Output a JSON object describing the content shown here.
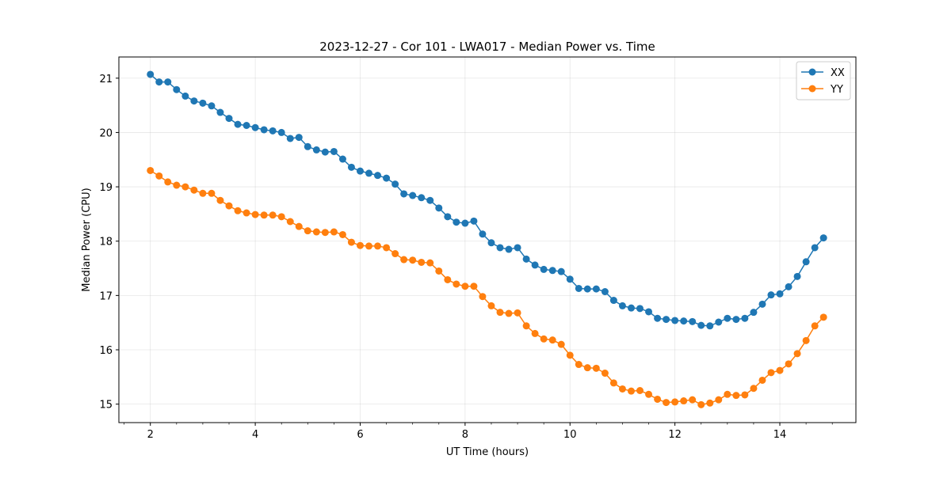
{
  "chart_data": {
    "type": "line",
    "title": "2023-12-27 - Cor 101 - LWA017 - Median Power vs. Time",
    "xlabel": "UT Time (hours)",
    "ylabel": "Median Power (CPU)",
    "xlim": [
      1.4,
      15.45
    ],
    "ylim": [
      14.66,
      21.39
    ],
    "xticks": [
      2,
      4,
      6,
      8,
      10,
      12,
      14
    ],
    "yticks": [
      15,
      16,
      17,
      18,
      19,
      20,
      21
    ],
    "grid": true,
    "legend_position": "top-right",
    "series": [
      {
        "name": "XX",
        "color": "#1f77b4",
        "marker": "circle",
        "x": [
          2.0,
          2.167,
          2.333,
          2.5,
          2.667,
          2.833,
          3.0,
          3.167,
          3.333,
          3.5,
          3.667,
          3.833,
          4.0,
          4.167,
          4.333,
          4.5,
          4.667,
          4.833,
          5.0,
          5.167,
          5.333,
          5.5,
          5.667,
          5.833,
          6.0,
          6.167,
          6.333,
          6.5,
          6.667,
          6.833,
          7.0,
          7.167,
          7.333,
          7.5,
          7.667,
          7.833,
          8.0,
          8.167,
          8.333,
          8.5,
          8.667,
          8.833,
          9.0,
          9.167,
          9.333,
          9.5,
          9.667,
          9.833,
          10.0,
          10.167,
          10.333,
          10.5,
          10.667,
          10.833,
          11.0,
          11.167,
          11.333,
          11.5,
          11.667,
          11.833,
          12.0,
          12.167,
          12.333,
          12.5,
          12.667,
          12.833,
          13.0,
          13.167,
          13.333,
          13.5,
          13.667,
          13.833,
          14.0,
          14.167,
          14.333,
          14.5,
          14.667,
          14.833
        ],
        "values": [
          21.07,
          20.93,
          20.93,
          20.79,
          20.67,
          20.58,
          20.54,
          20.49,
          20.37,
          20.26,
          20.15,
          20.13,
          20.09,
          20.05,
          20.03,
          20.0,
          19.89,
          19.91,
          19.74,
          19.68,
          19.64,
          19.65,
          19.51,
          19.36,
          19.29,
          19.25,
          19.21,
          19.16,
          19.05,
          18.87,
          18.84,
          18.8,
          18.75,
          18.61,
          18.45,
          18.35,
          18.33,
          18.37,
          18.13,
          17.97,
          17.88,
          17.85,
          17.88,
          17.67,
          17.56,
          17.48,
          17.46,
          17.44,
          17.3,
          17.13,
          17.12,
          17.12,
          17.07,
          16.91,
          16.81,
          16.77,
          16.76,
          16.7,
          16.58,
          16.56,
          16.54,
          16.53,
          16.52,
          16.45,
          16.44,
          16.51,
          16.58,
          16.56,
          16.58,
          16.69,
          16.84,
          17.01,
          17.03,
          17.16,
          17.35,
          17.62,
          17.88,
          18.06
        ]
      },
      {
        "name": "YY",
        "color": "#ff7f0e",
        "marker": "circle",
        "x": [
          2.0,
          2.167,
          2.333,
          2.5,
          2.667,
          2.833,
          3.0,
          3.167,
          3.333,
          3.5,
          3.667,
          3.833,
          4.0,
          4.167,
          4.333,
          4.5,
          4.667,
          4.833,
          5.0,
          5.167,
          5.333,
          5.5,
          5.667,
          5.833,
          6.0,
          6.167,
          6.333,
          6.5,
          6.667,
          6.833,
          7.0,
          7.167,
          7.333,
          7.5,
          7.667,
          7.833,
          8.0,
          8.167,
          8.333,
          8.5,
          8.667,
          8.833,
          9.0,
          9.167,
          9.333,
          9.5,
          9.667,
          9.833,
          10.0,
          10.167,
          10.333,
          10.5,
          10.667,
          10.833,
          11.0,
          11.167,
          11.333,
          11.5,
          11.667,
          11.833,
          12.0,
          12.167,
          12.333,
          12.5,
          12.667,
          12.833,
          13.0,
          13.167,
          13.333,
          13.5,
          13.667,
          13.833,
          14.0,
          14.167,
          14.333,
          14.5,
          14.667,
          14.833
        ],
        "values": [
          19.3,
          19.2,
          19.09,
          19.03,
          19.0,
          18.94,
          18.88,
          18.88,
          18.75,
          18.65,
          18.56,
          18.52,
          18.49,
          18.48,
          18.48,
          18.45,
          18.36,
          18.27,
          18.19,
          18.17,
          18.16,
          18.17,
          18.12,
          17.98,
          17.92,
          17.91,
          17.91,
          17.88,
          17.77,
          17.66,
          17.65,
          17.61,
          17.6,
          17.45,
          17.29,
          17.21,
          17.17,
          17.17,
          16.98,
          16.81,
          16.69,
          16.67,
          16.68,
          16.44,
          16.3,
          16.2,
          16.18,
          16.1,
          15.9,
          15.73,
          15.67,
          15.66,
          15.57,
          15.39,
          15.28,
          15.24,
          15.25,
          15.18,
          15.09,
          15.03,
          15.04,
          15.06,
          15.08,
          14.99,
          15.02,
          15.08,
          15.18,
          15.16,
          15.17,
          15.29,
          15.44,
          15.58,
          15.62,
          15.74,
          15.93,
          16.17,
          16.44,
          16.6
        ]
      }
    ]
  }
}
